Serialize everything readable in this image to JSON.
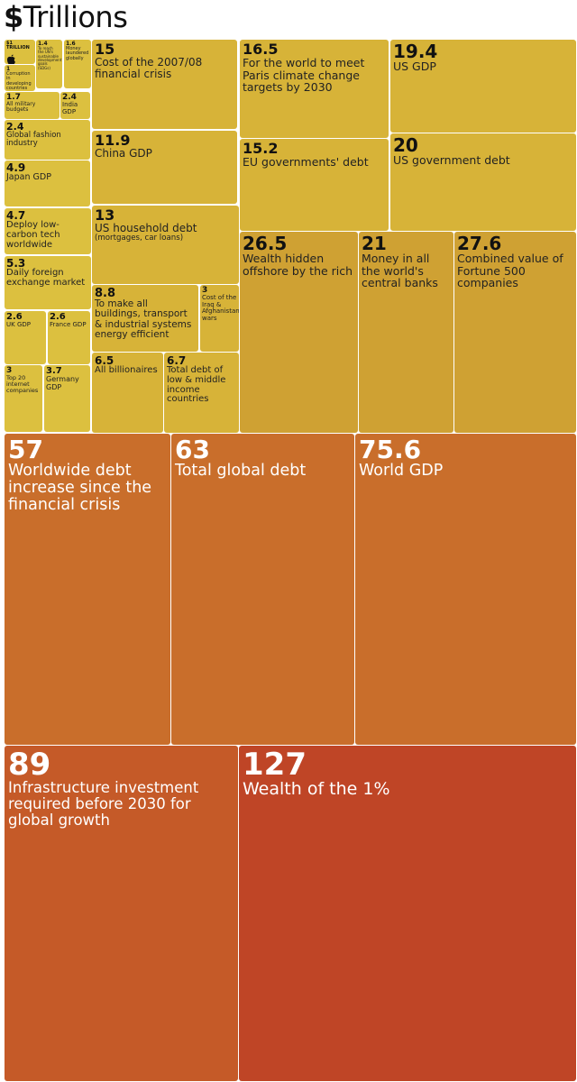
{
  "header": {
    "dollar": "$",
    "word": "Trillions"
  },
  "chart_data": {
    "type": "treemap",
    "title": "$Trillions",
    "colors": {
      "yellow_light": "#dcc03f",
      "yellow": "#d7b338",
      "gold": "#cfa133",
      "orange": "#c96e2b",
      "orange_dark": "#c55a28",
      "red": "#bf4526"
    },
    "items": [
      {
        "value": "$1 TRILLION",
        "label": "",
        "icon": "apple-icon"
      },
      {
        "value": "1.4",
        "label": "To reach the UN's sustainable development goals (SDGs)"
      },
      {
        "value": "1.6",
        "label": "Money laundered globally"
      },
      {
        "value": "1",
        "label": "Corruption in developing countries"
      },
      {
        "value": "1.7",
        "label": "All military budgets"
      },
      {
        "value": "2.4",
        "label": "India GDP"
      },
      {
        "value": "2.4",
        "label": "Global fashion industry"
      },
      {
        "value": "4.9",
        "label": "Japan GDP"
      },
      {
        "value": "4.7",
        "label": "Deploy low-carbon tech worldwide"
      },
      {
        "value": "5.3",
        "label": "Daily foreign exchange market"
      },
      {
        "value": "2.6",
        "label": "UK GDP"
      },
      {
        "value": "2.6",
        "label": "France GDP"
      },
      {
        "value": "3",
        "label": "Top 20 internet companies"
      },
      {
        "value": "3.7",
        "label": "Germany GDP"
      },
      {
        "value": "15",
        "label": "Cost of the 2007/08 financial crisis"
      },
      {
        "value": "11.9",
        "label": "China GDP"
      },
      {
        "value": "13",
        "label": "US household debt",
        "sublabel": "(mortgages, car loans)"
      },
      {
        "value": "8.8",
        "label": "To make all buildings, transport & industrial systems energy efficient"
      },
      {
        "value": "3",
        "label": "Cost of the Iraq & Afghanistan wars"
      },
      {
        "value": "6.5",
        "label": "All billionaires"
      },
      {
        "value": "6.7",
        "label": "Total debt of low & middle income countries"
      },
      {
        "value": "16.5",
        "label": "For the world to meet Paris climate change targets by 2030"
      },
      {
        "value": "19.4",
        "label": "US GDP"
      },
      {
        "value": "15.2",
        "label": "EU governments' debt"
      },
      {
        "value": "20",
        "label": "US government debt"
      },
      {
        "value": "26.5",
        "label": "Wealth hidden offshore by the rich"
      },
      {
        "value": "21",
        "label": "Money in all the world's central banks"
      },
      {
        "value": "27.6",
        "label": "Combined value of Fortune 500 companies"
      },
      {
        "value": "57",
        "label": "Worldwide debt increase since the financial crisis"
      },
      {
        "value": "63",
        "label": "Total global debt"
      },
      {
        "value": "75.6",
        "label": "World GDP"
      },
      {
        "value": "89",
        "label": "Infrastructure investment required before 2030 for global growth"
      },
      {
        "value": "127",
        "label": "Wealth of the 1%"
      }
    ]
  }
}
